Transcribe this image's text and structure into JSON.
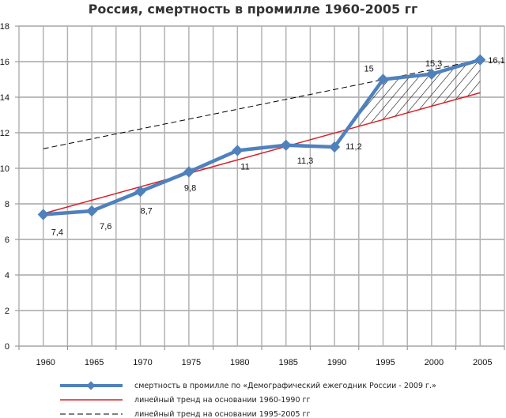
{
  "chart_data": {
    "type": "line",
    "title": "Россия, смертность в промилле 1960-2005 гг",
    "xlabel": "",
    "ylabel": "",
    "categories": [
      "1960",
      "1965",
      "1970",
      "1975",
      "1980",
      "1985",
      "1990",
      "1995",
      "2000",
      "2005"
    ],
    "ylim": [
      0,
      18
    ],
    "yticks": [
      0,
      2,
      4,
      6,
      8,
      10,
      12,
      14,
      16,
      18
    ],
    "grid": true,
    "legend_position": "bottom",
    "series": [
      {
        "name": "смертность в промилле по «Демографический ежегодник России - 2009 г.»",
        "values": [
          7.4,
          7.6,
          8.7,
          9.8,
          11,
          11.3,
          11.2,
          15,
          15.3,
          16.1
        ],
        "labels": [
          "7,4",
          "7,6",
          "8,7",
          "9,8",
          "11",
          "11,3",
          "11,2",
          "15",
          "15,3",
          "16,1"
        ],
        "color": "#4f81bd",
        "style": "solid-thick-diamond"
      },
      {
        "name": "линейный тренд на основании 1960-1990 гг",
        "x_range": [
          "1960",
          "2005"
        ],
        "values_endpoints": [
          7.45,
          14.25
        ],
        "color": "#d92027",
        "style": "solid-thin"
      },
      {
        "name": "линейный тренд на основании 1995-2005 гг",
        "x_range": [
          "1960",
          "2005"
        ],
        "values_endpoints": [
          11.1,
          16.1
        ],
        "color": "#000000",
        "style": "dashed"
      }
    ],
    "annotations": [
      {
        "type": "hatched-area",
        "between": [
          "series 0",
          "series 1"
        ],
        "x_from": "≈1991",
        "x_to": "2005"
      }
    ]
  },
  "legend": {
    "items": [
      "смертность в промилле по «Демографический ежегодник России - 2009 г.»",
      "линейный тренд на основании 1960-1990 гг",
      "линейный тренд на основании 1995-2005 гг"
    ]
  }
}
